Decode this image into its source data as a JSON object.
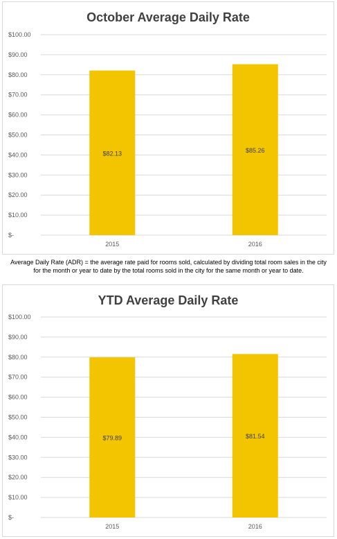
{
  "chart_data": [
    {
      "type": "bar",
      "title": "October Average Daily Rate",
      "categories": [
        "2015",
        "2016"
      ],
      "values": [
        82.13,
        85.26
      ],
      "value_labels": [
        "$82.13",
        "$85.26"
      ],
      "ylim": [
        0,
        100
      ],
      "yticks": [
        "$-",
        "$10.00",
        "$20.00",
        "$30.00",
        "$40.00",
        "$50.00",
        "$60.00",
        "$70.00",
        "$80.00",
        "$90.00",
        "$100.00"
      ],
      "grid": true,
      "color": "#F2C500"
    },
    {
      "type": "bar",
      "title": "YTD Average Daily Rate",
      "categories": [
        "2015",
        "2016"
      ],
      "values": [
        79.89,
        81.54
      ],
      "value_labels": [
        "$79.89",
        "$81.54"
      ],
      "ylim": [
        0,
        100
      ],
      "yticks": [
        "$-",
        "$10.00",
        "$20.00",
        "$30.00",
        "$40.00",
        "$50.00",
        "$60.00",
        "$70.00",
        "$80.00",
        "$90.00",
        "$100.00"
      ],
      "grid": true,
      "color": "#F2C500"
    }
  ],
  "note": {
    "line1": "Average Daily Rate (ADR) = the average rate paid for rooms sold, calculated by dividing total room sales in the city",
    "line2": "for the month or year to date by the total rooms sold in the city for the same month or year to date."
  }
}
